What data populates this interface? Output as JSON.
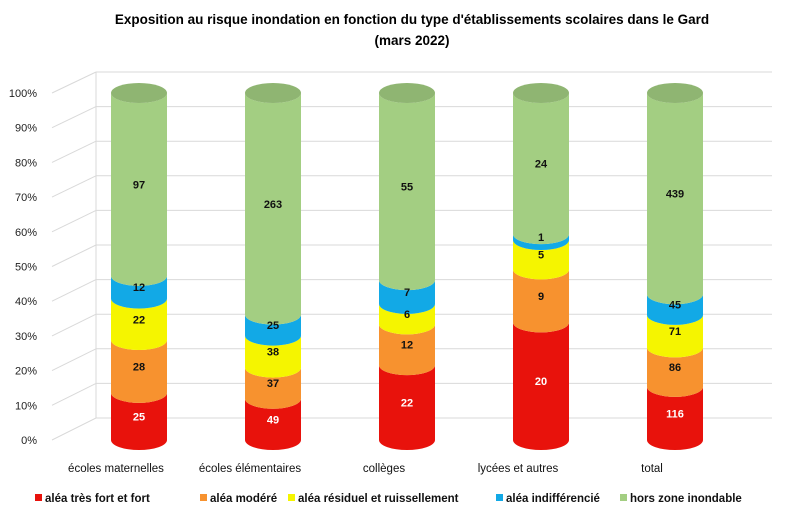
{
  "chart_data": {
    "type": "bar",
    "stacked": "percent",
    "style": "3d-cylinder",
    "title": "Exposition au risque inondation en fonction du type d'établissements scolaires dans le Gard",
    "subtitle": "(mars 2022)",
    "categories": [
      "écoles maternelles",
      "écoles élémentaires",
      "collèges",
      "lycées et autres",
      "total"
    ],
    "y_ticks": [
      "0%",
      "10%",
      "20%",
      "30%",
      "40%",
      "50%",
      "60%",
      "70%",
      "80%",
      "90%",
      "100%"
    ],
    "ylim": [
      0,
      100
    ],
    "grid": true,
    "legend_position": "bottom",
    "series": [
      {
        "name": "aléa très fort et fort",
        "color": "#e8120c",
        "values": [
          25,
          49,
          22,
          20,
          116
        ]
      },
      {
        "name": "aléa modéré",
        "color": "#f7922f",
        "values": [
          28,
          37,
          12,
          9,
          86
        ]
      },
      {
        "name": "aléa résiduel et ruissellement",
        "color": "#f5f500",
        "values": [
          22,
          38,
          6,
          5,
          71
        ]
      },
      {
        "name": "aléa indifférencié",
        "color": "#12a9e6",
        "values": [
          12,
          25,
          7,
          1,
          45
        ]
      },
      {
        "name": "hors zone inondable",
        "color": "#a3ce82",
        "values": [
          97,
          263,
          55,
          24,
          439
        ]
      }
    ]
  }
}
